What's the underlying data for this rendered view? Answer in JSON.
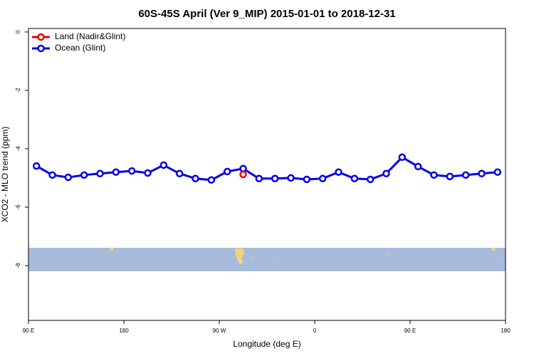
{
  "chart_data": {
    "type": "line",
    "title": "60S-45S April (Ver 9_MIP)   2015-01-01 to 2018-12-31",
    "x_label": "Longitude (deg E)",
    "y_label": "XCO2 - MLO trend (ppm)",
    "xlim": [
      90,
      540
    ],
    "ylim": [
      -9.88,
      0.12
    ],
    "xticks": [
      {
        "value": 90,
        "label": "90 E"
      },
      {
        "value": 180,
        "label": "180"
      },
      {
        "value": 270,
        "label": "90 W"
      },
      {
        "value": 360,
        "label": "0"
      },
      {
        "value": 450,
        "label": "90 E"
      },
      {
        "value": 540,
        "label": "180"
      }
    ],
    "yticks": [
      0,
      -2,
      -4,
      -6,
      -8
    ],
    "legend": "top-left",
    "series": [
      {
        "name": "Land (Nadir&Glint)",
        "color": "#ee0000",
        "x": [
          292.5
        ],
        "values": [
          -4.88
        ]
      },
      {
        "name": "Ocean (Glint)",
        "color": "#0000ee",
        "x": [
          97.5,
          112.5,
          127.5,
          142.5,
          157.5,
          172.5,
          187.5,
          202.5,
          217.5,
          232.5,
          247.5,
          262.5,
          277.5,
          292.5,
          307.5,
          322.5,
          337.5,
          352.5,
          367.5,
          382.5,
          397.5,
          412.5,
          427.5,
          442.5,
          457.5,
          472.5,
          487.5,
          502.5,
          517.5,
          532.5
        ],
        "values": [
          -4.59,
          -4.9,
          -4.98,
          -4.9,
          -4.85,
          -4.8,
          -4.76,
          -4.83,
          -4.56,
          -4.85,
          -5.02,
          -5.07,
          -4.78,
          -4.68,
          -5.02,
          -5.02,
          -5.0,
          -5.05,
          -5.02,
          -4.8,
          -5.02,
          -5.05,
          -4.85,
          -4.29,
          -4.61,
          -4.9,
          -4.95,
          -4.9,
          -4.85,
          -4.8
        ]
      }
    ]
  }
}
